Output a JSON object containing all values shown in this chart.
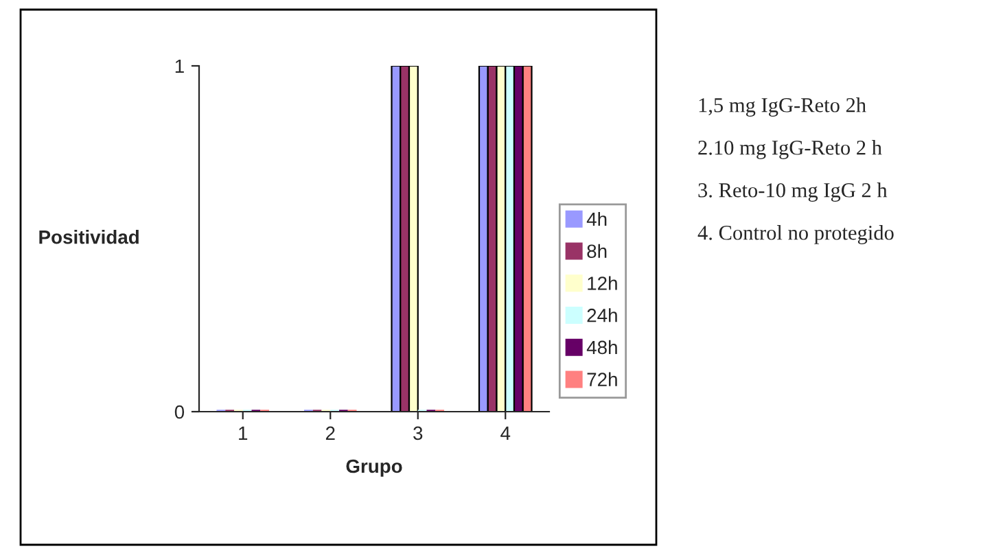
{
  "chart_data": {
    "type": "bar",
    "xlabel": "Grupo",
    "ylabel": "Positividad",
    "categories": [
      "1",
      "2",
      "3",
      "4"
    ],
    "series": [
      {
        "name": "4h",
        "color": "#9999ff",
        "values": [
          0,
          0,
          1,
          1
        ]
      },
      {
        "name": "8h",
        "color": "#993366",
        "values": [
          0,
          0,
          1,
          1
        ]
      },
      {
        "name": "12h",
        "color": "#ffffcc",
        "values": [
          0,
          0,
          1,
          1
        ]
      },
      {
        "name": "24h",
        "color": "#ccffff",
        "values": [
          0,
          0,
          0,
          1
        ]
      },
      {
        "name": "48h",
        "color": "#660066",
        "values": [
          0,
          0,
          0,
          1
        ]
      },
      {
        "name": "72h",
        "color": "#ff8080",
        "values": [
          0,
          0,
          0,
          1
        ]
      }
    ],
    "ylim": [
      0,
      1
    ],
    "yticks": [
      0,
      1
    ],
    "grid": false,
    "legend": "right",
    "annotations": [
      "1,5 mg IgG-Reto 2h",
      "2.10 mg IgG-Reto 2 h",
      "3. Reto-10 mg IgG 2 h",
      "4. Control no protegido"
    ]
  }
}
